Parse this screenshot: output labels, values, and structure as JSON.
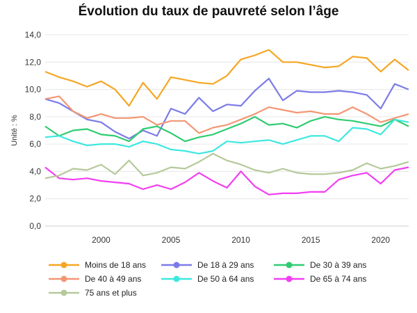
{
  "chart_data": {
    "type": "line",
    "title": "Évolution du taux de pauvreté selon l’âge",
    "xlabel": "",
    "ylabel": "Unité : %",
    "xlim": [
      1996,
      2022
    ],
    "ylim": [
      0,
      14
    ],
    "xticks": [
      2000,
      2005,
      2010,
      2015,
      2020
    ],
    "yticks": [
      "0,0",
      "2,0",
      "4,0",
      "6,0",
      "8,0",
      "10,0",
      "12,0",
      "14,0"
    ],
    "grid": "horizontal",
    "legend_position": "bottom",
    "x": [
      1996,
      1997,
      1998,
      1999,
      2000,
      2001,
      2002,
      2003,
      2004,
      2005,
      2006,
      2007,
      2008,
      2009,
      2010,
      2011,
      2012,
      2013,
      2014,
      2015,
      2016,
      2017,
      2018,
      2019,
      2020,
      2021,
      2022
    ],
    "series": [
      {
        "name": "Moins de 18 ans",
        "color": "#f5a623",
        "values": [
          11.3,
          10.9,
          10.6,
          10.2,
          10.6,
          10.0,
          8.8,
          10.5,
          9.3,
          10.9,
          10.7,
          10.5,
          10.4,
          11.0,
          12.2,
          12.5,
          12.9,
          12.0,
          12.0,
          11.8,
          11.6,
          11.7,
          12.4,
          12.3,
          11.3,
          12.2,
          11.4
        ]
      },
      {
        "name": "De 18 à 29 ans",
        "color": "#7b7be8",
        "values": [
          9.3,
          9.0,
          8.4,
          7.8,
          7.6,
          6.9,
          6.4,
          7.0,
          6.6,
          8.6,
          8.2,
          9.4,
          8.4,
          8.9,
          8.8,
          9.9,
          10.8,
          9.2,
          9.9,
          9.8,
          9.8,
          9.9,
          9.8,
          9.6,
          8.6,
          10.4,
          10.0
        ]
      },
      {
        "name": "De 30 à 39 ans",
        "color": "#2ecc71",
        "values": [
          7.3,
          6.6,
          7.0,
          7.1,
          6.7,
          6.6,
          6.2,
          7.1,
          7.3,
          6.8,
          6.2,
          6.5,
          6.7,
          7.1,
          7.5,
          8.0,
          7.4,
          7.5,
          7.2,
          7.7,
          8.0,
          7.8,
          7.7,
          7.5,
          7.3,
          7.8,
          7.3
        ]
      },
      {
        "name": "De 40 à 49 ans",
        "color": "#f39673",
        "values": [
          9.3,
          9.5,
          8.4,
          7.9,
          8.2,
          7.9,
          7.9,
          8.0,
          7.4,
          7.7,
          7.7,
          6.8,
          7.2,
          7.4,
          7.8,
          8.2,
          8.7,
          8.5,
          8.3,
          8.4,
          8.2,
          8.2,
          8.7,
          8.2,
          7.6,
          7.9,
          8.2
        ]
      },
      {
        "name": "De 50 à 64 ans",
        "color": "#3de8e0",
        "values": [
          6.5,
          6.6,
          6.2,
          5.9,
          6.0,
          6.0,
          5.8,
          6.2,
          6.0,
          5.6,
          5.5,
          5.3,
          5.5,
          6.2,
          6.1,
          6.2,
          6.3,
          6.0,
          6.3,
          6.6,
          6.6,
          6.2,
          7.2,
          7.1,
          6.7,
          7.8,
          7.6
        ]
      },
      {
        "name": "De 65 à 74 ans",
        "color": "#f23ef2",
        "values": [
          4.3,
          3.5,
          3.4,
          3.5,
          3.3,
          3.2,
          3.1,
          2.7,
          3.0,
          2.7,
          3.2,
          3.9,
          3.3,
          2.8,
          4.0,
          2.9,
          2.3,
          2.4,
          2.4,
          2.5,
          2.5,
          3.4,
          3.7,
          3.9,
          3.1,
          4.1,
          4.3
        ]
      },
      {
        "name": "75 ans et plus",
        "color": "#b5c99a",
        "values": [
          3.5,
          3.7,
          4.2,
          4.1,
          4.5,
          3.8,
          4.8,
          3.7,
          3.9,
          4.3,
          4.2,
          4.7,
          5.3,
          4.8,
          4.5,
          4.1,
          3.9,
          4.2,
          3.9,
          3.8,
          3.8,
          3.9,
          4.1,
          4.6,
          4.2,
          4.4,
          4.7
        ]
      }
    ]
  }
}
